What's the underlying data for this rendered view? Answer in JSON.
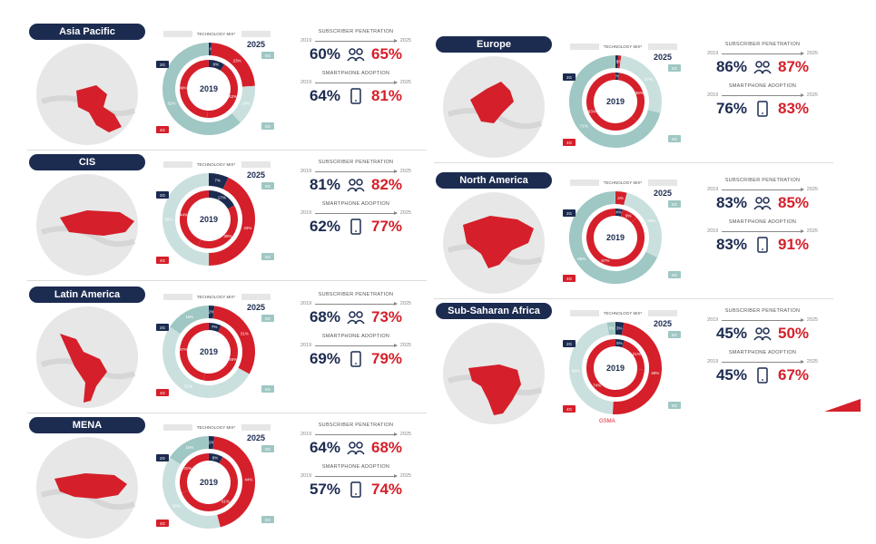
{
  "labels": {
    "tech_mix": "TECHNOLOGY MIX*",
    "sub_pen": "SUBSCRIBER PENETRATION",
    "smart": "SMARTPHONE ADOPTION",
    "y2019": "2019",
    "y2025": "2025",
    "chip2g": "2G",
    "chip3g": "3G",
    "chip4g": "4G",
    "chip5g": "5G"
  },
  "colors": {
    "navy": "#1c2b50",
    "red": "#d51f2a",
    "teal": "#9fc7c4",
    "tealLight": "#c9e0de"
  },
  "footer": "GSMA",
  "chart_data": [
    {
      "type": "pie",
      "region": "Asia Pacific",
      "mix2019": [
        [
          "2G",
          9
        ],
        [
          "3G",
          42
        ],
        [
          "4G",
          49
        ]
      ],
      "mix2025": [
        [
          "2G",
          1
        ],
        [
          "3G",
          23
        ],
        [
          "4G",
          14
        ],
        [
          "5G",
          62
        ]
      ],
      "sub_pen": [
        "60%",
        "65%"
      ],
      "smart": [
        "64%",
        "81%"
      ],
      "pos": "l0"
    },
    {
      "type": "pie",
      "region": "CIS",
      "mix2019": [
        [
          "2G",
          17
        ],
        [
          "3G",
          39
        ],
        [
          "4G",
          44
        ]
      ],
      "mix2025": [
        [
          "2G",
          7
        ],
        [
          "3G",
          43
        ],
        [
          "4G",
          50
        ],
        [
          "5G",
          0
        ]
      ],
      "sub_pen": [
        "81%",
        "82%"
      ],
      "smart": [
        "62%",
        "77%"
      ],
      "pos": "l1"
    },
    {
      "type": "pie",
      "region": "Latin America",
      "mix2019": [
        [
          "2G",
          7
        ],
        [
          "3G",
          46
        ],
        [
          "4G",
          47
        ]
      ],
      "mix2025": [
        [
          "2G",
          2
        ],
        [
          "3G",
          31
        ],
        [
          "4G",
          51
        ],
        [
          "5G",
          16
        ]
      ],
      "sub_pen": [
        "68%",
        "73%"
      ],
      "smart": [
        "69%",
        "79%"
      ],
      "pos": "l2"
    },
    {
      "type": "pie",
      "region": "MENA",
      "mix2019": [
        [
          "2G",
          8
        ],
        [
          "3G",
          61
        ],
        [
          "4G",
          31
        ]
      ],
      "mix2025": [
        [
          "2G",
          2
        ],
        [
          "3G",
          44
        ],
        [
          "4G",
          38
        ],
        [
          "5G",
          16
        ]
      ],
      "sub_pen": [
        "64%",
        "68%"
      ],
      "smart": [
        "57%",
        "74%"
      ],
      "pos": "l3"
    },
    {
      "type": "pie",
      "region": "Europe",
      "mix2019": [
        [
          "2G",
          2
        ],
        [
          "3G",
          35
        ],
        [
          "4G",
          63
        ]
      ],
      "mix2025": [
        [
          "2G",
          1
        ],
        [
          "3G",
          1
        ],
        [
          "4G",
          27
        ],
        [
          "5G",
          71
        ]
      ],
      "sub_pen": [
        "86%",
        "87%"
      ],
      "smart": [
        "76%",
        "83%"
      ],
      "pos": "r0"
    },
    {
      "type": "pie",
      "region": "North America",
      "mix2019": [
        [
          "2G",
          4
        ],
        [
          "3G",
          9
        ],
        [
          "4G",
          87
        ]
      ],
      "mix2025": [
        [
          "2G",
          0
        ],
        [
          "3G",
          4
        ],
        [
          "4G",
          28
        ],
        [
          "5G",
          68
        ]
      ],
      "sub_pen": [
        "83%",
        "85%"
      ],
      "smart": [
        "83%",
        "91%"
      ],
      "pos": "r1"
    },
    {
      "type": "pie",
      "region": "Sub-Saharan Africa",
      "mix2019": [
        [
          "2G",
          5
        ],
        [
          "3G",
          21
        ],
        [
          "4G",
          74
        ]
      ],
      "mix2025": [
        [
          "2G",
          3
        ],
        [
          "3G",
          48
        ],
        [
          "4G",
          46
        ],
        [
          "5G",
          3
        ]
      ],
      "sub_pen": [
        "45%",
        "50%"
      ],
      "smart": [
        "45%",
        "67%"
      ],
      "pos": "r2"
    }
  ]
}
